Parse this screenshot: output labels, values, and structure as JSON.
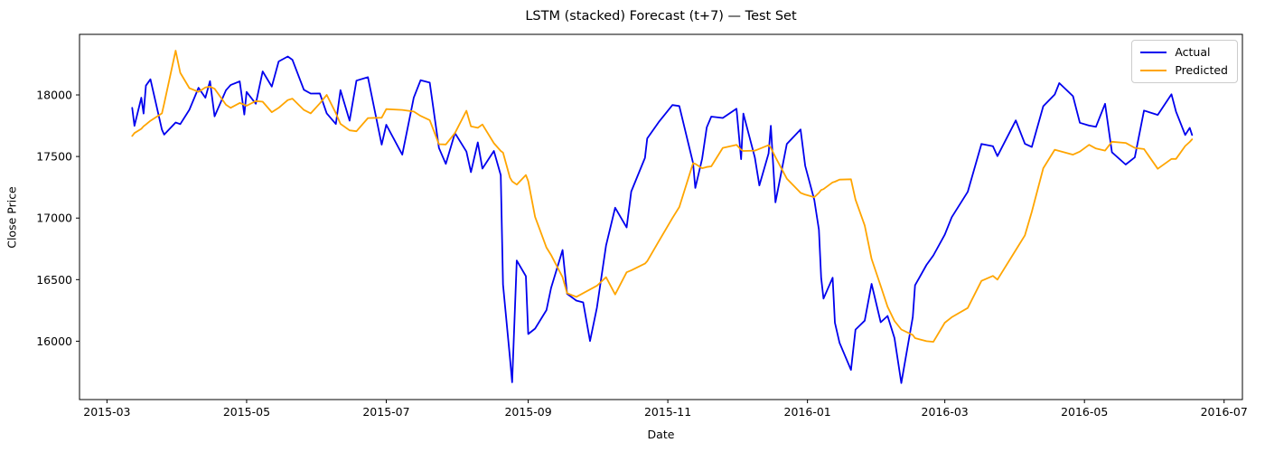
{
  "title": "LSTM (stacked) Forecast (t+7) — Test Set",
  "xlabel": "Date",
  "ylabel": "Close Price",
  "legend": [
    {
      "label": "Actual",
      "color": "#0000ee"
    },
    {
      "label": "Predicted",
      "color": "#ffa500"
    }
  ],
  "chart_data": {
    "type": "line",
    "title": "LSTM (stacked) Forecast (t+7) — Test Set",
    "xlabel": "Date",
    "ylabel": "Close Price",
    "legend_position": "upper right",
    "grid": false,
    "x_tick_labels": [
      "2015-03",
      "2015-05",
      "2015-07",
      "2015-09",
      "2015-11",
      "2016-01",
      "2016-03",
      "2016-05",
      "2016-07"
    ],
    "y_tick_labels": [
      "16000",
      "16500",
      "17000",
      "17500",
      "18000"
    ],
    "x_range": [
      "2015-02-17",
      "2016-07-09"
    ],
    "y_range": [
      15526,
      18492
    ],
    "dates": [
      "2015-03-12",
      "2015-03-13",
      "2015-03-16",
      "2015-03-17",
      "2015-03-18",
      "2015-03-20",
      "2015-03-25",
      "2015-03-26",
      "2015-03-31",
      "2015-04-02",
      "2015-04-06",
      "2015-04-10",
      "2015-04-13",
      "2015-04-15",
      "2015-04-17",
      "2015-04-22",
      "2015-04-24",
      "2015-04-28",
      "2015-04-30",
      "2015-05-01",
      "2015-05-05",
      "2015-05-08",
      "2015-05-12",
      "2015-05-15",
      "2015-05-19",
      "2015-05-21",
      "2015-05-26",
      "2015-05-29",
      "2015-06-02",
      "2015-06-05",
      "2015-06-09",
      "2015-06-11",
      "2015-06-15",
      "2015-06-18",
      "2015-06-23",
      "2015-06-29",
      "2015-07-01",
      "2015-07-08",
      "2015-07-13",
      "2015-07-16",
      "2015-07-20",
      "2015-07-24",
      "2015-07-27",
      "2015-07-31",
      "2015-08-05",
      "2015-08-07",
      "2015-08-10",
      "2015-08-12",
      "2015-08-17",
      "2015-08-20",
      "2015-08-21",
      "2015-08-24",
      "2015-08-25",
      "2015-08-27",
      "2015-08-31",
      "2015-09-01",
      "2015-09-04",
      "2015-09-09",
      "2015-09-11",
      "2015-09-16",
      "2015-09-18",
      "2015-09-22",
      "2015-09-25",
      "2015-09-28",
      "2015-10-01",
      "2015-10-05",
      "2015-10-09",
      "2015-10-14",
      "2015-10-16",
      "2015-10-22",
      "2015-10-23",
      "2015-10-28",
      "2015-11-03",
      "2015-11-06",
      "2015-11-12",
      "2015-11-13",
      "2015-11-16",
      "2015-11-18",
      "2015-11-20",
      "2015-11-25",
      "2015-12-01",
      "2015-12-03",
      "2015-12-04",
      "2015-12-09",
      "2015-12-11",
      "2015-12-15",
      "2015-12-16",
      "2015-12-18",
      "2015-12-23",
      "2015-12-29",
      "2015-12-31",
      "2016-01-04",
      "2016-01-06",
      "2016-01-07",
      "2016-01-08",
      "2016-01-12",
      "2016-01-13",
      "2016-01-15",
      "2016-01-20",
      "2016-01-22",
      "2016-01-26",
      "2016-01-29",
      "2016-02-02",
      "2016-02-05",
      "2016-02-08",
      "2016-02-11",
      "2016-02-16",
      "2016-02-17",
      "2016-02-22",
      "2016-02-25",
      "2016-03-01",
      "2016-03-04",
      "2016-03-11",
      "2016-03-17",
      "2016-03-22",
      "2016-03-24",
      "2016-04-01",
      "2016-04-05",
      "2016-04-08",
      "2016-04-13",
      "2016-04-18",
      "2016-04-20",
      "2016-04-26",
      "2016-04-29",
      "2016-05-03",
      "2016-05-06",
      "2016-05-10",
      "2016-05-13",
      "2016-05-19",
      "2016-05-23",
      "2016-05-27",
      "2016-06-02",
      "2016-06-08",
      "2016-06-10",
      "2016-06-14",
      "2016-06-16",
      "2016-06-17"
    ],
    "series": [
      {
        "name": "Actual",
        "color": "#0000ee",
        "values": [
          17895,
          17749,
          17977,
          17849,
          18076,
          18127,
          17718,
          17678,
          17776,
          17763,
          17880,
          18058,
          17977,
          18112,
          17826,
          18038,
          18080,
          18110,
          17841,
          18024,
          17928,
          18191,
          18068,
          18272,
          18312,
          18286,
          18042,
          18011,
          18012,
          17850,
          17764,
          18039,
          17791,
          18116,
          18144,
          17596,
          17758,
          17515,
          17977,
          18120,
          18100,
          17569,
          17440,
          17690,
          17540,
          17373,
          17615,
          17402,
          17545,
          17349,
          16460,
          15871,
          15666,
          16655,
          16528,
          16058,
          16102,
          16253,
          16433,
          16740,
          16385,
          16330,
          16315,
          16002,
          16272,
          16776,
          17084,
          16924,
          17215,
          17489,
          17647,
          17779,
          17918,
          17910,
          17448,
          17245,
          17483,
          17737,
          17824,
          17813,
          17888,
          17478,
          17848,
          17492,
          17265,
          17525,
          17749,
          17128,
          17602,
          17720,
          17425,
          17148,
          16906,
          16514,
          16346,
          16516,
          16151,
          15988,
          15767,
          16094,
          16167,
          16466,
          16154,
          16205,
          16027,
          15660,
          16196,
          16454,
          16620,
          16697,
          16865,
          17007,
          17213,
          17602,
          17583,
          17503,
          17793,
          17603,
          17577,
          17908,
          18004,
          18096,
          17990,
          17774,
          17751,
          17741,
          17928,
          17535,
          17435,
          17493,
          17873,
          17838,
          18005,
          17865,
          17675,
          17733,
          17675
        ]
      },
      {
        "name": "Predicted",
        "color": "#ffa500",
        "values": [
          17667,
          17690,
          17725,
          17745,
          17760,
          17790,
          17850,
          17930,
          18360,
          18180,
          18055,
          18025,
          18060,
          18068,
          18050,
          17920,
          17895,
          17935,
          17920,
          17912,
          17950,
          17945,
          17860,
          17895,
          17958,
          17970,
          17878,
          17850,
          17932,
          18000,
          17852,
          17765,
          17712,
          17705,
          17812,
          17815,
          17885,
          17878,
          17865,
          17830,
          17795,
          17600,
          17598,
          17690,
          17872,
          17745,
          17733,
          17760,
          17608,
          17545,
          17532,
          17330,
          17298,
          17272,
          17350,
          17300,
          17010,
          16760,
          16700,
          16520,
          16390,
          16360,
          16390,
          16420,
          16450,
          16520,
          16380,
          16560,
          16575,
          16630,
          16650,
          16810,
          17000,
          17090,
          17445,
          17440,
          17405,
          17415,
          17420,
          17570,
          17595,
          17555,
          17545,
          17548,
          17562,
          17592,
          17570,
          17495,
          17320,
          17205,
          17190,
          17170,
          17205,
          17228,
          17235,
          17290,
          17295,
          17312,
          17315,
          17150,
          16940,
          16668,
          16448,
          16280,
          16165,
          16095,
          16050,
          16025,
          16000,
          15995,
          16150,
          16195,
          16270,
          16490,
          16530,
          16500,
          16740,
          16860,
          17050,
          17405,
          17555,
          17545,
          17515,
          17540,
          17595,
          17565,
          17548,
          17620,
          17610,
          17570,
          17560,
          17400,
          17480,
          17480,
          17585,
          17618,
          17640
        ]
      }
    ]
  }
}
